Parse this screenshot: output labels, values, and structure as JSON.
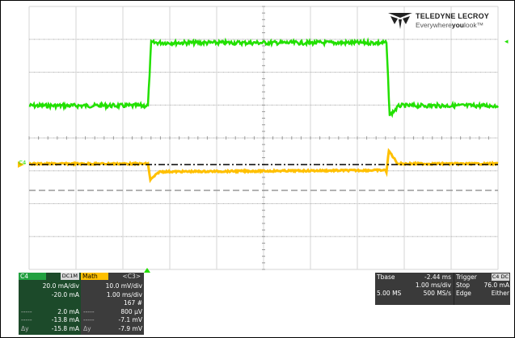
{
  "brand": {
    "name": "TELEDYNE LECROY",
    "tagline_a": "Everywhere",
    "tagline_b": "you",
    "tagline_c": "look",
    "tm": "™"
  },
  "markers": {
    "c4_left": "C4",
    "math_left": "M1",
    "arrow_right": "◂"
  },
  "colors": {
    "c4": "#22e000",
    "math": "#ffc000",
    "grid": "#888888",
    "ref_dash": "#000000",
    "ref_gray": "#999999"
  },
  "c4_panel": {
    "tab": "C4",
    "tag": "DC1M",
    "rows": [
      {
        "k": "",
        "v": "20.0 mA/div"
      },
      {
        "k": "",
        "v": "-20.0 mA"
      },
      {
        "k": "",
        "v": ""
      },
      {
        "k": "-----",
        "v": "2.0 mA"
      },
      {
        "k": "-----",
        "v": "-13.8 mA"
      },
      {
        "k": "Δy",
        "v": "-15.8 mA"
      }
    ]
  },
  "math_panel": {
    "tab": "Math",
    "tag": "<C3>",
    "rows": [
      {
        "k": "",
        "v": "10.0 mV/div"
      },
      {
        "k": "",
        "v": "1.00 ms/div"
      },
      {
        "k": "",
        "v": "167 #"
      },
      {
        "k": "-----",
        "v": "800 μV"
      },
      {
        "k": "-----",
        "v": "-7.1 mV"
      },
      {
        "k": "Δy",
        "v": "-7.9 mV"
      }
    ]
  },
  "timebase": {
    "label": "Tbase",
    "offset": "-2.44 ms",
    "div": "1.00 ms/div",
    "samples": "5.00 MS",
    "rate": "500 MS/s"
  },
  "trigger": {
    "label": "Trigger",
    "tag": "C4 DC",
    "mode": "Stop",
    "level": "76.0 mA",
    "type": "Edge",
    "slope": "Either"
  }
}
